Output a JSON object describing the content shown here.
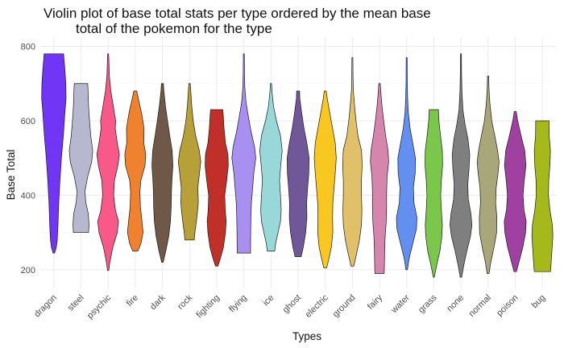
{
  "chart_data": {
    "type": "violin",
    "title_lines": [
      "Violin plot of base total stats per type ordered by the mean base",
      "total of the pokemon for the type"
    ],
    "xlabel": "Types",
    "ylabel": "Base Total",
    "ylim": [
      150,
      825
    ],
    "yticks": [
      200,
      400,
      600,
      800
    ],
    "grid": true,
    "legend": "none",
    "categories": [
      "dragon",
      "steel",
      "psychic",
      "fire",
      "dark",
      "rock",
      "fighting",
      "flying",
      "ice",
      "ghost",
      "electric",
      "ground",
      "fairy",
      "water",
      "grass",
      "none",
      "normal",
      "poison",
      "bug"
    ],
    "series": [
      {
        "category": "dragon",
        "color": "#7135F5",
        "min": 245,
        "max": 780,
        "profile": [
          [
            245,
            0.06
          ],
          [
            260,
            0.2
          ],
          [
            280,
            0.28
          ],
          [
            320,
            0.34
          ],
          [
            380,
            0.4
          ],
          [
            440,
            0.5
          ],
          [
            500,
            0.62
          ],
          [
            560,
            0.78
          ],
          [
            620,
            0.9
          ],
          [
            660,
            1.0
          ],
          [
            700,
            0.98
          ],
          [
            740,
            0.9
          ],
          [
            770,
            0.82
          ],
          [
            780,
            0.8
          ]
        ]
      },
      {
        "category": "steel",
        "color": "#B7B8D0",
        "min": 300,
        "max": 700,
        "profile": [
          [
            300,
            0.62
          ],
          [
            320,
            0.66
          ],
          [
            350,
            0.6
          ],
          [
            380,
            0.4
          ],
          [
            410,
            0.32
          ],
          [
            450,
            0.55
          ],
          [
            490,
            0.88
          ],
          [
            520,
            0.96
          ],
          [
            560,
            0.8
          ],
          [
            600,
            0.7
          ],
          [
            640,
            0.62
          ],
          [
            680,
            0.58
          ],
          [
            700,
            0.55
          ]
        ]
      },
      {
        "category": "psychic",
        "color": "#F95988",
        "min": 198,
        "max": 780,
        "profile": [
          [
            198,
            0.05
          ],
          [
            220,
            0.14
          ],
          [
            260,
            0.38
          ],
          [
            300,
            0.75
          ],
          [
            330,
            0.85
          ],
          [
            360,
            0.6
          ],
          [
            400,
            0.45
          ],
          [
            440,
            0.52
          ],
          [
            480,
            0.8
          ],
          [
            510,
            0.92
          ],
          [
            540,
            0.75
          ],
          [
            580,
            0.58
          ],
          [
            600,
            0.62
          ],
          [
            640,
            0.42
          ],
          [
            680,
            0.22
          ],
          [
            720,
            0.1
          ],
          [
            760,
            0.06
          ],
          [
            780,
            0.03
          ]
        ]
      },
      {
        "category": "fire",
        "color": "#F0812F",
        "min": 250,
        "max": 680,
        "profile": [
          [
            250,
            0.2
          ],
          [
            270,
            0.46
          ],
          [
            300,
            0.64
          ],
          [
            330,
            0.55
          ],
          [
            370,
            0.42
          ],
          [
            410,
            0.38
          ],
          [
            440,
            0.46
          ],
          [
            480,
            0.8
          ],
          [
            510,
            0.86
          ],
          [
            540,
            0.7
          ],
          [
            580,
            0.72
          ],
          [
            620,
            0.52
          ],
          [
            660,
            0.25
          ],
          [
            680,
            0.12
          ]
        ]
      },
      {
        "category": "dark",
        "color": "#705848",
        "min": 220,
        "max": 700,
        "profile": [
          [
            220,
            0.06
          ],
          [
            250,
            0.28
          ],
          [
            290,
            0.52
          ],
          [
            330,
            0.66
          ],
          [
            370,
            0.72
          ],
          [
            410,
            0.74
          ],
          [
            440,
            0.78
          ],
          [
            480,
            0.86
          ],
          [
            520,
            0.8
          ],
          [
            560,
            0.6
          ],
          [
            600,
            0.42
          ],
          [
            640,
            0.25
          ],
          [
            680,
            0.12
          ],
          [
            700,
            0.08
          ]
        ]
      },
      {
        "category": "rock",
        "color": "#B8A038",
        "min": 280,
        "max": 700,
        "profile": [
          [
            280,
            0.38
          ],
          [
            300,
            0.44
          ],
          [
            340,
            0.6
          ],
          [
            380,
            0.72
          ],
          [
            420,
            0.68
          ],
          [
            450,
            0.78
          ],
          [
            490,
            0.92
          ],
          [
            520,
            0.8
          ],
          [
            560,
            0.5
          ],
          [
            600,
            0.3
          ],
          [
            640,
            0.18
          ],
          [
            680,
            0.1
          ],
          [
            700,
            0.06
          ]
        ]
      },
      {
        "category": "fighting",
        "color": "#C03028",
        "min": 210,
        "max": 630,
        "profile": [
          [
            210,
            0.1
          ],
          [
            230,
            0.3
          ],
          [
            260,
            0.55
          ],
          [
            300,
            0.72
          ],
          [
            330,
            0.78
          ],
          [
            360,
            0.7
          ],
          [
            400,
            0.66
          ],
          [
            440,
            0.82
          ],
          [
            480,
            0.95
          ],
          [
            510,
            0.92
          ],
          [
            540,
            0.72
          ],
          [
            580,
            0.6
          ],
          [
            610,
            0.55
          ],
          [
            630,
            0.5
          ]
        ]
      },
      {
        "category": "flying",
        "color": "#A890F0",
        "min": 245,
        "max": 780,
        "profile": [
          [
            245,
            0.55
          ],
          [
            260,
            0.55
          ],
          [
            300,
            0.56
          ],
          [
            340,
            0.58
          ],
          [
            380,
            0.62
          ],
          [
            420,
            0.72
          ],
          [
            460,
            0.82
          ],
          [
            500,
            0.98
          ],
          [
            530,
            0.88
          ],
          [
            570,
            0.6
          ],
          [
            610,
            0.38
          ],
          [
            650,
            0.18
          ],
          [
            690,
            0.08
          ],
          [
            730,
            0.05
          ],
          [
            780,
            0.04
          ]
        ]
      },
      {
        "category": "ice",
        "color": "#98D8D8",
        "min": 250,
        "max": 700,
        "profile": [
          [
            250,
            0.3
          ],
          [
            270,
            0.38
          ],
          [
            300,
            0.58
          ],
          [
            330,
            0.78
          ],
          [
            360,
            0.84
          ],
          [
            400,
            0.78
          ],
          [
            440,
            0.7
          ],
          [
            480,
            0.8
          ],
          [
            520,
            0.92
          ],
          [
            560,
            0.78
          ],
          [
            600,
            0.45
          ],
          [
            640,
            0.2
          ],
          [
            680,
            0.08
          ],
          [
            700,
            0.05
          ]
        ]
      },
      {
        "category": "ghost",
        "color": "#705898",
        "min": 235,
        "max": 680,
        "profile": [
          [
            235,
            0.25
          ],
          [
            260,
            0.42
          ],
          [
            300,
            0.62
          ],
          [
            340,
            0.72
          ],
          [
            380,
            0.7
          ],
          [
            420,
            0.78
          ],
          [
            460,
            0.88
          ],
          [
            500,
            0.9
          ],
          [
            540,
            0.72
          ],
          [
            580,
            0.48
          ],
          [
            620,
            0.3
          ],
          [
            660,
            0.14
          ],
          [
            680,
            0.12
          ]
        ]
      },
      {
        "category": "electric",
        "color": "#F8C820",
        "min": 205,
        "max": 680,
        "profile": [
          [
            205,
            0.12
          ],
          [
            230,
            0.3
          ],
          [
            260,
            0.5
          ],
          [
            300,
            0.62
          ],
          [
            340,
            0.6
          ],
          [
            380,
            0.62
          ],
          [
            420,
            0.72
          ],
          [
            460,
            0.82
          ],
          [
            500,
            0.9
          ],
          [
            540,
            0.82
          ],
          [
            580,
            0.6
          ],
          [
            620,
            0.38
          ],
          [
            660,
            0.16
          ],
          [
            680,
            0.08
          ]
        ]
      },
      {
        "category": "ground",
        "color": "#E0C068",
        "min": 210,
        "max": 770,
        "profile": [
          [
            210,
            0.12
          ],
          [
            240,
            0.32
          ],
          [
            280,
            0.58
          ],
          [
            320,
            0.74
          ],
          [
            360,
            0.78
          ],
          [
            400,
            0.74
          ],
          [
            440,
            0.74
          ],
          [
            480,
            0.8
          ],
          [
            520,
            0.75
          ],
          [
            560,
            0.45
          ],
          [
            600,
            0.3
          ],
          [
            640,
            0.18
          ],
          [
            680,
            0.08
          ],
          [
            720,
            0.05
          ],
          [
            770,
            0.04
          ]
        ]
      },
      {
        "category": "fairy",
        "color": "#D685AD",
        "min": 190,
        "max": 700,
        "profile": [
          [
            190,
            0.38
          ],
          [
            210,
            0.4
          ],
          [
            250,
            0.42
          ],
          [
            290,
            0.46
          ],
          [
            330,
            0.55
          ],
          [
            370,
            0.58
          ],
          [
            410,
            0.58
          ],
          [
            450,
            0.62
          ],
          [
            490,
            0.75
          ],
          [
            520,
            0.7
          ],
          [
            560,
            0.5
          ],
          [
            600,
            0.34
          ],
          [
            640,
            0.2
          ],
          [
            680,
            0.1
          ],
          [
            700,
            0.06
          ]
        ]
      },
      {
        "category": "water",
        "color": "#6390F0",
        "min": 200,
        "max": 770,
        "profile": [
          [
            200,
            0.06
          ],
          [
            230,
            0.2
          ],
          [
            270,
            0.5
          ],
          [
            310,
            0.8
          ],
          [
            340,
            0.84
          ],
          [
            380,
            0.6
          ],
          [
            420,
            0.55
          ],
          [
            460,
            0.7
          ],
          [
            500,
            0.72
          ],
          [
            540,
            0.5
          ],
          [
            580,
            0.28
          ],
          [
            620,
            0.14
          ],
          [
            660,
            0.08
          ],
          [
            700,
            0.05
          ],
          [
            770,
            0.03
          ]
        ]
      },
      {
        "category": "grass",
        "color": "#7AC74C",
        "min": 180,
        "max": 630,
        "profile": [
          [
            180,
            0.04
          ],
          [
            210,
            0.22
          ],
          [
            250,
            0.5
          ],
          [
            290,
            0.66
          ],
          [
            320,
            0.7
          ],
          [
            360,
            0.62
          ],
          [
            400,
            0.56
          ],
          [
            440,
            0.62
          ],
          [
            480,
            0.72
          ],
          [
            520,
            0.7
          ],
          [
            560,
            0.55
          ],
          [
            600,
            0.42
          ],
          [
            630,
            0.38
          ]
        ]
      },
      {
        "category": "none",
        "color": "#7F7F7F",
        "min": 180,
        "max": 780,
        "profile": [
          [
            180,
            0.06
          ],
          [
            210,
            0.22
          ],
          [
            250,
            0.48
          ],
          [
            290,
            0.78
          ],
          [
            320,
            0.9
          ],
          [
            350,
            0.82
          ],
          [
            390,
            0.6
          ],
          [
            430,
            0.56
          ],
          [
            470,
            0.66
          ],
          [
            510,
            0.72
          ],
          [
            550,
            0.58
          ],
          [
            590,
            0.34
          ],
          [
            630,
            0.16
          ],
          [
            680,
            0.08
          ],
          [
            730,
            0.05
          ],
          [
            780,
            0.03
          ]
        ]
      },
      {
        "category": "normal",
        "color": "#A8A77A",
        "min": 190,
        "max": 720,
        "profile": [
          [
            190,
            0.08
          ],
          [
            220,
            0.22
          ],
          [
            260,
            0.48
          ],
          [
            300,
            0.7
          ],
          [
            340,
            0.72
          ],
          [
            380,
            0.62
          ],
          [
            420,
            0.66
          ],
          [
            460,
            0.82
          ],
          [
            490,
            0.9
          ],
          [
            520,
            0.78
          ],
          [
            560,
            0.55
          ],
          [
            600,
            0.3
          ],
          [
            650,
            0.14
          ],
          [
            690,
            0.07
          ],
          [
            720,
            0.05
          ]
        ]
      },
      {
        "category": "poison",
        "color": "#A040A0",
        "min": 195,
        "max": 625,
        "profile": [
          [
            195,
            0.1
          ],
          [
            220,
            0.3
          ],
          [
            260,
            0.62
          ],
          [
            300,
            0.85
          ],
          [
            330,
            0.9
          ],
          [
            360,
            0.72
          ],
          [
            400,
            0.64
          ],
          [
            440,
            0.74
          ],
          [
            480,
            0.88
          ],
          [
            520,
            0.78
          ],
          [
            560,
            0.48
          ],
          [
            600,
            0.2
          ],
          [
            625,
            0.08
          ]
        ]
      },
      {
        "category": "bug",
        "color": "#A6B91A",
        "min": 195,
        "max": 600,
        "profile": [
          [
            195,
            0.66
          ],
          [
            210,
            0.7
          ],
          [
            250,
            0.78
          ],
          [
            290,
            0.86
          ],
          [
            320,
            0.82
          ],
          [
            360,
            0.62
          ],
          [
            400,
            0.5
          ],
          [
            440,
            0.52
          ],
          [
            480,
            0.62
          ],
          [
            520,
            0.66
          ],
          [
            560,
            0.56
          ],
          [
            590,
            0.55
          ],
          [
            600,
            0.55
          ]
        ]
      }
    ]
  }
}
